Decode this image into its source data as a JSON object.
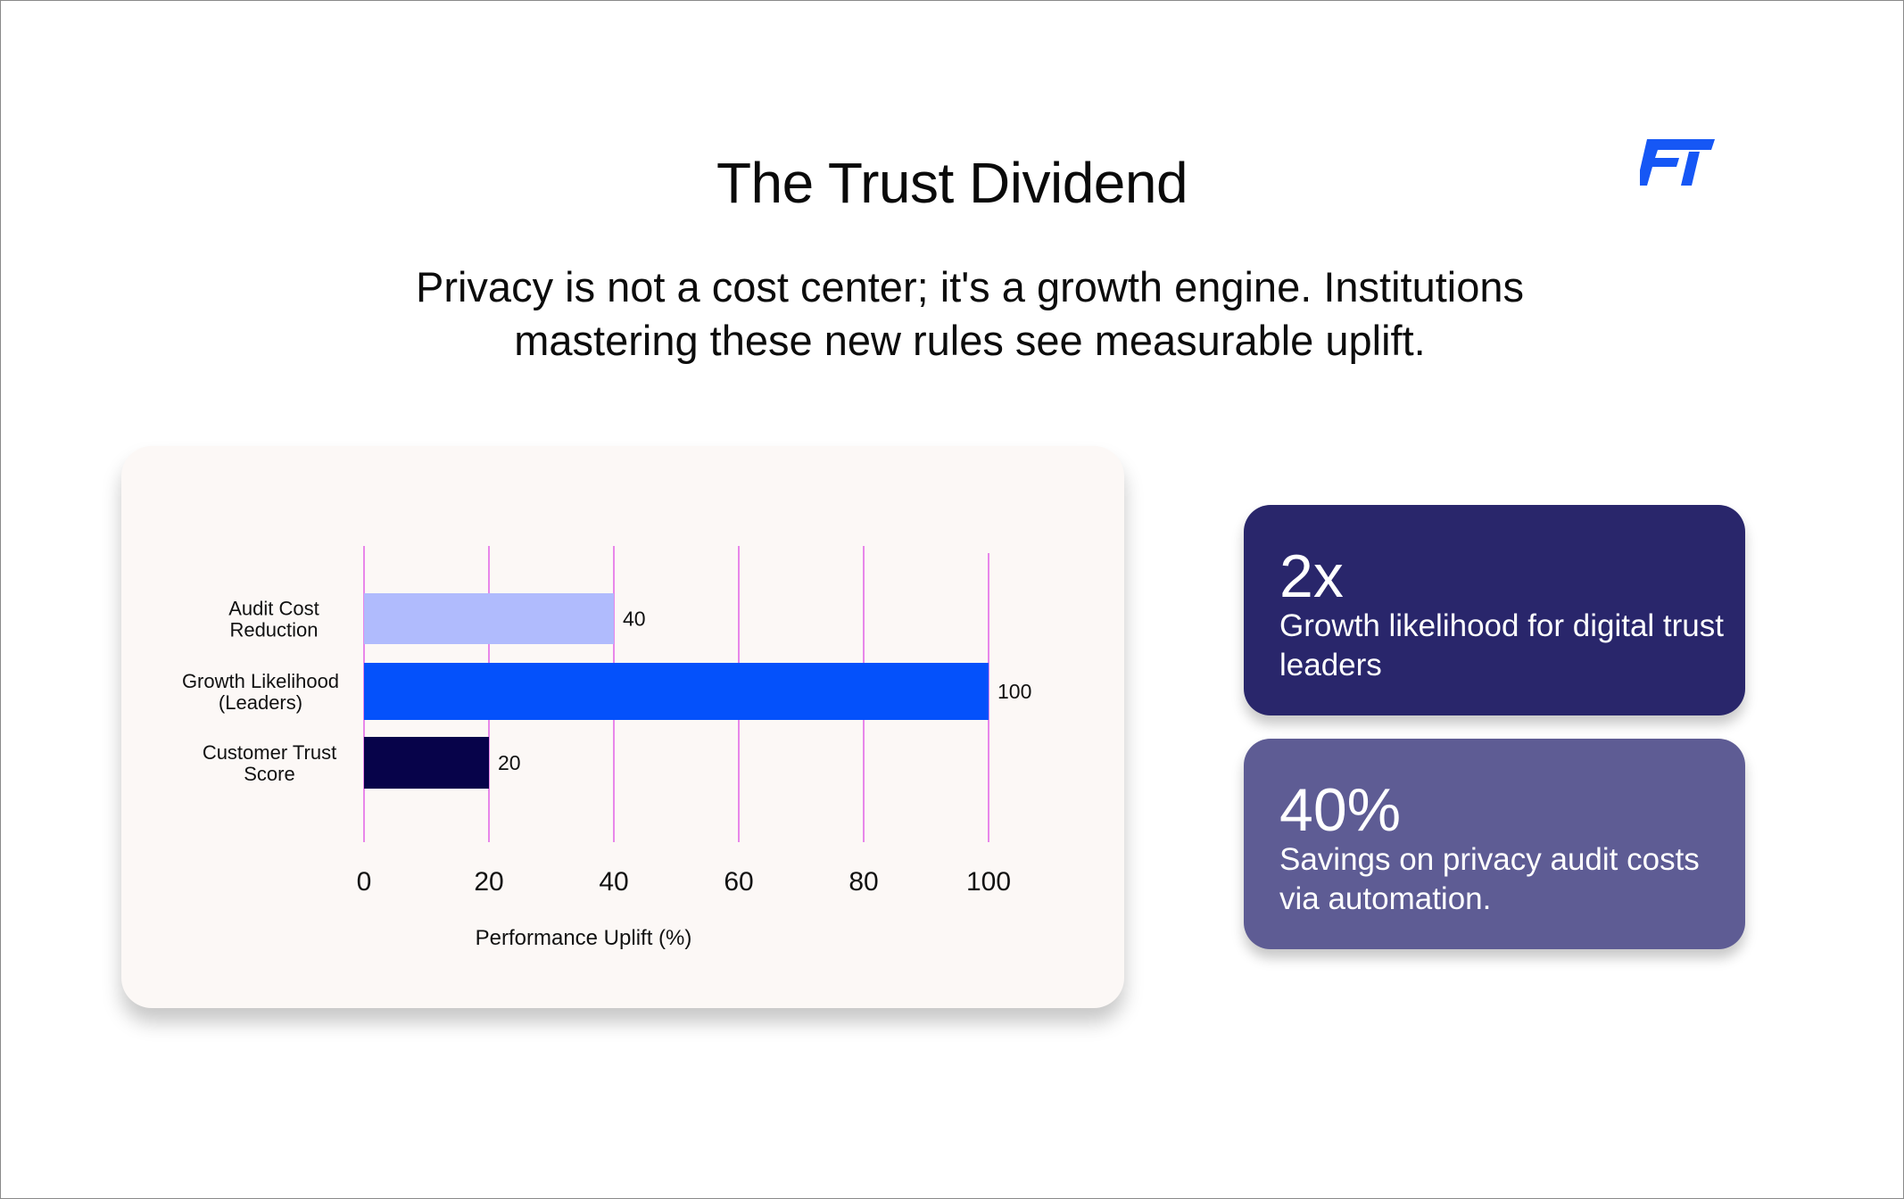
{
  "slide": {
    "title": "The Trust Dividend",
    "subtitle": "Privacy is not a cost center; it's a growth engine. Institutions mastering these new rules see measurable uplift.",
    "logo_icon": "ft-logo-icon",
    "logo_color": "#1657f5"
  },
  "stats": [
    {
      "value": "2x",
      "description": "Growth likelihood for digital trust leaders",
      "color": "#29266b"
    },
    {
      "value": "40%",
      "description": "Savings on privacy audit costs via automation.",
      "color": "#5e5c94"
    }
  ],
  "chart_data": {
    "type": "bar",
    "orientation": "horizontal",
    "categories": [
      [
        "Audit Cost",
        "Reduction"
      ],
      [
        "Growth Likelihood",
        "(Leaders)"
      ],
      [
        "Customer Trust",
        "Score"
      ]
    ],
    "values": [
      40,
      100,
      20
    ],
    "colors": [
      "#b0bbfd",
      "#0451fb",
      "#07034a"
    ],
    "xlabel": "Performance Uplift (%)",
    "xlim": [
      0,
      100
    ],
    "xticks": [
      0,
      20,
      40,
      60,
      80,
      100
    ],
    "grid": true,
    "grid_color": "#e36be8",
    "legend": false
  }
}
